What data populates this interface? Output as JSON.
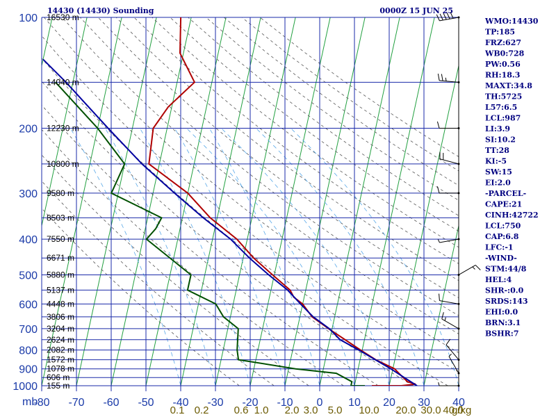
{
  "header": {
    "station": "14430 (14430) Sounding",
    "time": "0000Z 15 JUN 25"
  },
  "axis": {
    "units_label": "mb",
    "mixing_ratio_unit": "g/kg"
  },
  "chart_data": {
    "type": "line",
    "title": "14430 (14430) Sounding",
    "x_axis": {
      "label": "",
      "min": -80,
      "max": 40,
      "ticks": [
        -80,
        -70,
        -60,
        -50,
        -40,
        -30,
        -20,
        -10,
        0,
        10,
        20,
        30,
        40
      ]
    },
    "y_axis": {
      "label": "mb",
      "scale": "log",
      "min": 1000,
      "max": 100,
      "ticks": [
        100,
        200,
        300,
        400,
        500,
        600,
        700,
        800,
        900,
        1000
      ]
    },
    "height_labels": [
      {
        "p": 100,
        "label": "16530 m"
      },
      {
        "p": 150,
        "label": "14040 m"
      },
      {
        "p": 200,
        "label": "12230 m"
      },
      {
        "p": 250,
        "label": "10800 m"
      },
      {
        "p": 300,
        "label": "9580 m"
      },
      {
        "p": 350,
        "label": "8503 m"
      },
      {
        "p": 400,
        "label": "7550 m"
      },
      {
        "p": 450,
        "label": "6671 m"
      },
      {
        "p": 500,
        "label": "5880 m"
      },
      {
        "p": 550,
        "label": "5137 m"
      },
      {
        "p": 600,
        "label": "4448 m"
      },
      {
        "p": 650,
        "label": "3806 m"
      },
      {
        "p": 700,
        "label": "3204 m"
      },
      {
        "p": 750,
        "label": "2624 m"
      },
      {
        "p": 800,
        "label": "2082 m"
      },
      {
        "p": 850,
        "label": "1572 m"
      },
      {
        "p": 900,
        "label": "1078 m"
      },
      {
        "p": 950,
        "label": "606 m"
      },
      {
        "p": 1000,
        "label": "155 m"
      }
    ],
    "mixing_ratio_labels": [
      "0.1",
      "0.2",
      "0.6",
      "1.0",
      "2.0",
      "3.0",
      "5.0",
      "10.0",
      "20.0",
      "30.0",
      "40.0"
    ],
    "series": [
      {
        "key": "temperature",
        "color": "#b00000",
        "points": [
          [
            1000,
            15.0
          ],
          [
            1000,
            23.5
          ],
          [
            990,
            27.5
          ],
          [
            975,
            25.0
          ],
          [
            925,
            22.0
          ],
          [
            900,
            20.5
          ],
          [
            850,
            14.5
          ],
          [
            800,
            9.5
          ],
          [
            700,
            -1.0
          ],
          [
            650,
            -6.5
          ],
          [
            600,
            -10.0
          ],
          [
            575,
            -13.0
          ],
          [
            550,
            -14.5
          ],
          [
            500,
            -20.5
          ],
          [
            450,
            -27.0
          ],
          [
            400,
            -33.0
          ],
          [
            350,
            -42.0
          ],
          [
            300,
            -50.0
          ],
          [
            250,
            -63.0
          ],
          [
            200,
            -64.0
          ],
          [
            175,
            -61.0
          ],
          [
            150,
            -55.0
          ],
          [
            125,
            -61.0
          ],
          [
            100,
            -63.0
          ]
        ]
      },
      {
        "key": "dewpoint",
        "color": "#005000",
        "points": [
          [
            1000,
            13.0
          ],
          [
            1000,
            9.0
          ],
          [
            975,
            9.0
          ],
          [
            925,
            4.0
          ],
          [
            900,
            -8.0
          ],
          [
            850,
            -25.0
          ],
          [
            800,
            -26.0
          ],
          [
            700,
            -27.0
          ],
          [
            650,
            -32.0
          ],
          [
            600,
            -35.0
          ],
          [
            550,
            -44.0
          ],
          [
            500,
            -44.0
          ],
          [
            400,
            -59.0
          ],
          [
            375,
            -57.0
          ],
          [
            350,
            -56.0
          ],
          [
            300,
            -72.0
          ],
          [
            250,
            -70.0
          ],
          [
            200,
            -80.0
          ],
          [
            150,
            -95.0
          ]
        ]
      },
      {
        "key": "parcel",
        "color": "#0000a0",
        "points": [
          [
            1000,
            28.0
          ],
          [
            950,
            23.8
          ],
          [
            900,
            19.4
          ],
          [
            850,
            14.4
          ],
          [
            800,
            9.0
          ],
          [
            750,
            3.0
          ],
          [
            700,
            -0.8
          ],
          [
            650,
            -6.2
          ],
          [
            600,
            -10.6
          ],
          [
            550,
            -15.2
          ],
          [
            500,
            -21.6
          ],
          [
            450,
            -28.2
          ],
          [
            400,
            -34.8
          ],
          [
            350,
            -44.0
          ],
          [
            300,
            -53.8
          ],
          [
            250,
            -65.0
          ],
          [
            200,
            -77.0
          ],
          [
            150,
            -92.0
          ],
          [
            130,
            -100.0
          ]
        ]
      }
    ],
    "wind_barbs": [
      {
        "p": 1000,
        "dir": 270,
        "spd": 5
      },
      {
        "p": 925,
        "dir": 330,
        "spd": 5
      },
      {
        "p": 850,
        "dir": 320,
        "spd": 10
      },
      {
        "p": 700,
        "dir": 300,
        "spd": 15
      },
      {
        "p": 600,
        "dir": 280,
        "spd": 10
      },
      {
        "p": 500,
        "dir": 60,
        "spd": 15
      },
      {
        "p": 400,
        "dir": 260,
        "spd": 5
      },
      {
        "p": 300,
        "dir": 270,
        "spd": 10
      },
      {
        "p": 250,
        "dir": 285,
        "spd": 20
      },
      {
        "p": 200,
        "dir": 270,
        "spd": 10
      },
      {
        "p": 150,
        "dir": 275,
        "spd": 25
      },
      {
        "p": 100,
        "dir": 260,
        "spd": 50
      }
    ]
  },
  "indices": [
    "WMO:14430",
    "TP:185",
    "FRZ:627",
    "WB0:728",
    "PW:0.56",
    "RH:18.3",
    "MAXT:34.8",
    "TH:5725",
    "L57:6.5",
    "LCL:987",
    "LI:3.9",
    "SI:10.2",
    "TT:28",
    "KI:-5",
    "SW:15",
    "EI:2.0",
    "-PARCEL-",
    "CAPE:21",
    "CINH:42722",
    "LCL:750",
    "CAP:6.8",
    "LFC:-1",
    "-WIND-",
    "STM:44/8",
    "HEL:4",
    "SHR-:0.0",
    "SRDS:143",
    "EHI:0.0",
    "BRN:3.1",
    "BSHR:7"
  ]
}
